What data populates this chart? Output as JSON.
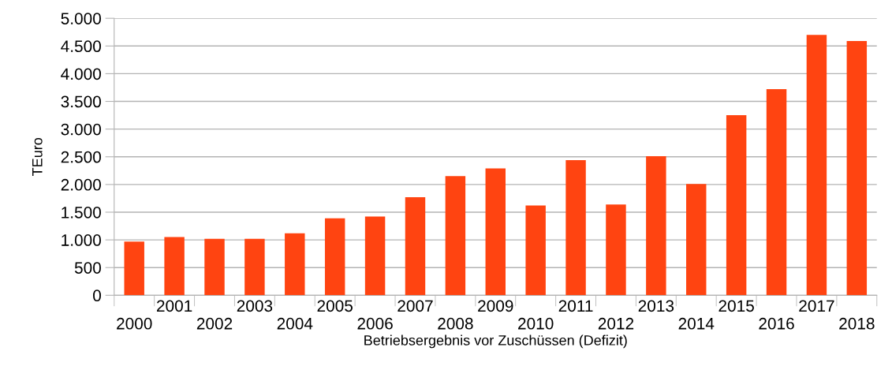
{
  "chart_data": {
    "type": "bar",
    "xlabel": "Betriebsergebnis vor Zuschüssen (Defizit)",
    "ylabel": "TEuro",
    "categories": [
      "2000",
      "2001",
      "2002",
      "2003",
      "2004",
      "2005",
      "2006",
      "2007",
      "2008",
      "2009",
      "2010",
      "2011",
      "2012",
      "2013",
      "2014",
      "2015",
      "2016",
      "2017",
      "2018"
    ],
    "values": [
      970,
      1050,
      1020,
      1020,
      1120,
      1390,
      1420,
      1770,
      2150,
      2290,
      1620,
      2440,
      1640,
      2510,
      2010,
      3250,
      3720,
      4700,
      4590
    ],
    "color": "#ff4411",
    "ylim": [
      0,
      5000
    ],
    "yticks": [
      {
        "value": 0,
        "label": "0"
      },
      {
        "value": 500,
        "label": "500"
      },
      {
        "value": 1000,
        "label": "1.000"
      },
      {
        "value": 1500,
        "label": "1.500"
      },
      {
        "value": 2000,
        "label": "2.000"
      },
      {
        "value": 2500,
        "label": "2.500"
      },
      {
        "value": 3000,
        "label": "3.000"
      },
      {
        "value": 3500,
        "label": "3.500"
      },
      {
        "value": 4000,
        "label": "4.000"
      },
      {
        "value": 4500,
        "label": "4.500"
      },
      {
        "value": 5000,
        "label": "5.000"
      }
    ],
    "grid": "y",
    "legend": false
  }
}
